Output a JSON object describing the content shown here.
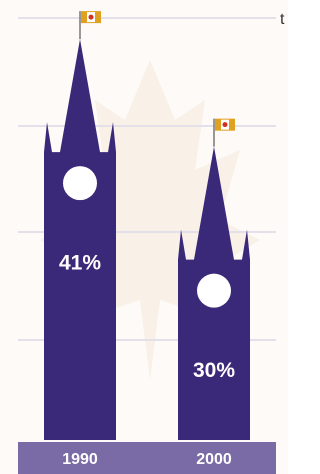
{
  "chart_data": {
    "type": "bar",
    "annotation": "t",
    "categories": [
      "1990",
      "2000"
    ],
    "values": [
      41,
      30
    ],
    "value_labels": [
      "41%",
      "30%"
    ],
    "color": "#3a2878",
    "ylim": [
      0,
      45
    ]
  }
}
